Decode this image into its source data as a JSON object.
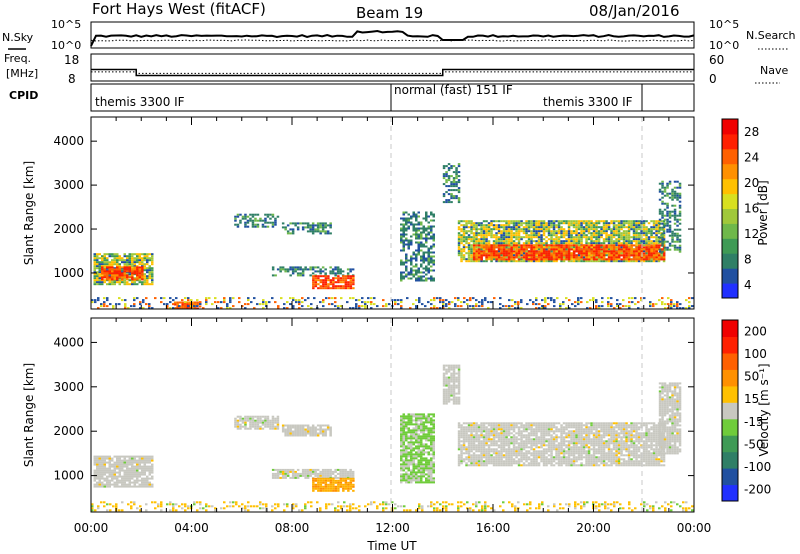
{
  "header": {
    "radar": "Fort Hays West (fitACF)",
    "beam": "Beam 19",
    "date": "08/Jan/2016"
  },
  "noise_panel": {
    "left_label": "N.Sky",
    "left_ticks": [
      "10^5",
      "10^0"
    ],
    "right_label": "N.Search",
    "right_ticks": [
      "10^5",
      "10^0"
    ]
  },
  "freq_panel": {
    "left_label_1": "Freq.",
    "left_label_2": "[MHz]",
    "left_ticks": [
      "18",
      "8"
    ],
    "right_label": "Nave",
    "right_ticks": [
      "60",
      "0"
    ],
    "freq_segments": [
      {
        "start_h": 0.0,
        "end_h": 1.8,
        "mhz": 13.5
      },
      {
        "start_h": 1.8,
        "end_h": 14.0,
        "mhz": 10.4
      },
      {
        "start_h": 14.0,
        "end_h": 24.0,
        "mhz": 13.5
      }
    ],
    "nave_segments": [
      {
        "start_h": 0.0,
        "end_h": 1.8,
        "nave": 22
      },
      {
        "start_h": 1.8,
        "end_h": 14.0,
        "nave": 18
      },
      {
        "start_h": 14.0,
        "end_h": 24.0,
        "nave": 22
      }
    ]
  },
  "cpid_panel": {
    "label": "CPID",
    "entries": [
      {
        "text": "themis 3300 IF",
        "start_h": 0.0
      },
      {
        "text": "normal (fast) 151 IF",
        "start_h": 12.0
      },
      {
        "text": "themis 3300 IF",
        "start_h": 22.0
      }
    ]
  },
  "chart_data": [
    {
      "type": "heatmap",
      "name": "power",
      "ylabel": "Slant Range [km]",
      "xlim": [
        0,
        24
      ],
      "ylim": [
        180,
        4550
      ],
      "yticks": [
        "1000",
        "2000",
        "3000",
        "4000"
      ],
      "colorbar": {
        "label": "Power [dB]",
        "ticks": [
          "28",
          "24",
          "20",
          "16",
          "12",
          "8",
          "4"
        ],
        "colors": [
          "#2030ff",
          "#2050a0",
          "#2f7f66",
          "#3f9a55",
          "#6fb84a",
          "#a0c83a",
          "#d8e020",
          "#ffc000",
          "#ff9000",
          "#ff6000",
          "#ff2000",
          "#f00000"
        ]
      },
      "regions": [
        {
          "t0": 0.1,
          "t1": 2.4,
          "r0": 750,
          "r1": 1450,
          "kind": "moderate"
        },
        {
          "t0": 0.4,
          "t1": 2.0,
          "r0": 850,
          "r1": 1150,
          "kind": "strong"
        },
        {
          "t0": 5.7,
          "t1": 7.4,
          "r0": 2050,
          "r1": 2350,
          "kind": "weak"
        },
        {
          "t0": 7.6,
          "t1": 9.5,
          "r0": 1900,
          "r1": 2150,
          "kind": "weak"
        },
        {
          "t0": 7.2,
          "t1": 10.4,
          "r0": 950,
          "r1": 1150,
          "kind": "weak"
        },
        {
          "t0": 8.8,
          "t1": 10.4,
          "r0": 650,
          "r1": 950,
          "kind": "strong"
        },
        {
          "t0": 3.3,
          "t1": 4.3,
          "r0": 200,
          "r1": 350,
          "kind": "strong"
        },
        {
          "t0": 0.0,
          "t1": 24.0,
          "r0": 200,
          "r1": 450,
          "kind": "noise"
        },
        {
          "t0": 12.3,
          "t1": 13.6,
          "r0": 850,
          "r1": 2400,
          "kind": "weak"
        },
        {
          "t0": 14.0,
          "t1": 14.6,
          "r0": 2600,
          "r1": 3500,
          "kind": "weak"
        },
        {
          "t0": 14.6,
          "t1": 22.8,
          "r0": 1250,
          "r1": 2200,
          "kind": "moderate"
        },
        {
          "t0": 15.2,
          "t1": 22.8,
          "r0": 1300,
          "r1": 1650,
          "kind": "strong"
        },
        {
          "t0": 22.6,
          "t1": 23.4,
          "r0": 1500,
          "r1": 3100,
          "kind": "weak"
        }
      ]
    },
    {
      "type": "heatmap",
      "name": "velocity",
      "ylabel": "Slant Range [km]",
      "xlabel": "Time UT",
      "xlim": [
        0,
        24
      ],
      "ylim": [
        180,
        4550
      ],
      "xticks": [
        "00:00",
        "04:00",
        "08:00",
        "12:00",
        "16:00",
        "20:00",
        "00:00"
      ],
      "yticks": [
        "1000",
        "2000",
        "3000",
        "4000"
      ],
      "colorbar": {
        "label": "Velocity [m s⁻¹]",
        "ticks": [
          "200",
          "100",
          "50",
          "15",
          "-15",
          "-50",
          "-100",
          "-200"
        ],
        "colors": [
          "#2030ff",
          "#2050a0",
          "#2f7f66",
          "#3f9a55",
          "#6fcc3a",
          "#c8c8c0",
          "#ffc000",
          "#ff9000",
          "#ff6000",
          "#ff2000",
          "#f00000"
        ]
      },
      "regions": [
        {
          "t0": 0.1,
          "t1": 2.4,
          "r0": 750,
          "r1": 1450,
          "kind": "gray"
        },
        {
          "t0": 5.7,
          "t1": 7.4,
          "r0": 2050,
          "r1": 2350,
          "kind": "gray"
        },
        {
          "t0": 7.6,
          "t1": 9.5,
          "r0": 1900,
          "r1": 2150,
          "kind": "gray"
        },
        {
          "t0": 7.2,
          "t1": 10.4,
          "r0": 950,
          "r1": 1150,
          "kind": "gray"
        },
        {
          "t0": 8.8,
          "t1": 10.4,
          "r0": 650,
          "r1": 950,
          "kind": "orange"
        },
        {
          "t0": 0.0,
          "t1": 24.0,
          "r0": 200,
          "r1": 420,
          "kind": "orange_noise"
        },
        {
          "t0": 12.3,
          "t1": 13.6,
          "r0": 850,
          "r1": 2400,
          "kind": "green"
        },
        {
          "t0": 14.0,
          "t1": 14.6,
          "r0": 2600,
          "r1": 3500,
          "kind": "gray"
        },
        {
          "t0": 14.6,
          "t1": 22.8,
          "r0": 1250,
          "r1": 2200,
          "kind": "gray"
        },
        {
          "t0": 22.6,
          "t1": 23.4,
          "r0": 1500,
          "r1": 3100,
          "kind": "gray"
        }
      ]
    }
  ]
}
